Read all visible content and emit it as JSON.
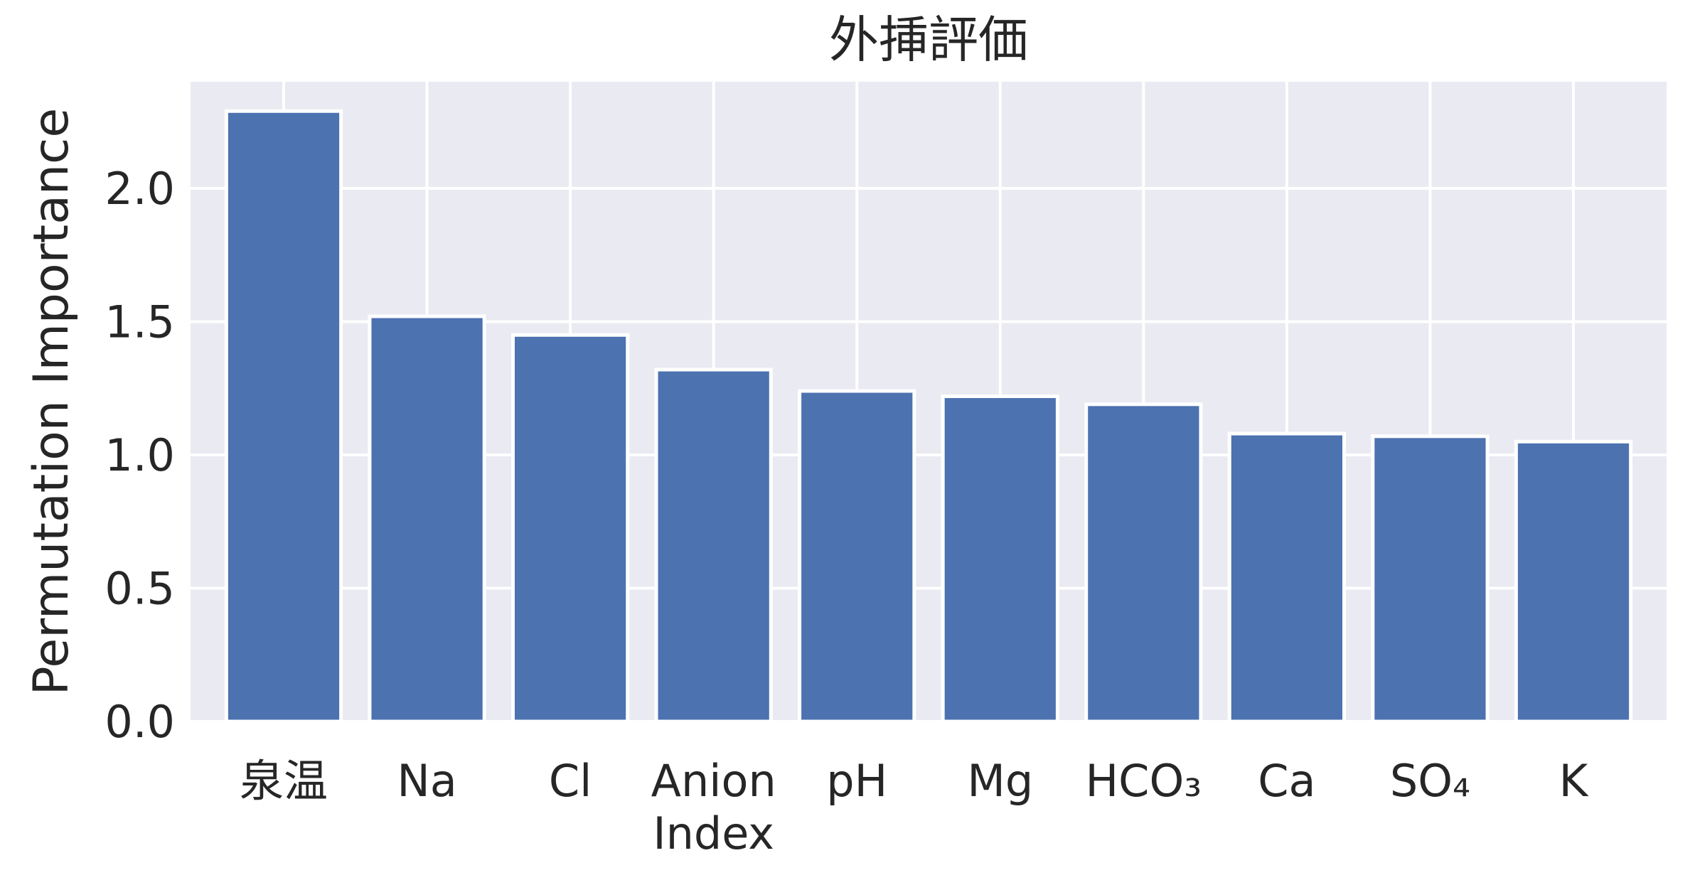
{
  "chart_data": {
    "type": "bar",
    "title": "外挿評価",
    "xlabel": "",
    "ylabel": "Permutation Importance",
    "categories": [
      [
        "泉温"
      ],
      [
        "Na"
      ],
      [
        "Cl"
      ],
      [
        "Anion",
        "Index"
      ],
      [
        "pH"
      ],
      [
        "Mg"
      ],
      [
        "HCO₃"
      ],
      [
        "Ca"
      ],
      [
        "SO₄"
      ],
      [
        "K"
      ]
    ],
    "values": [
      2.29,
      1.52,
      1.45,
      1.32,
      1.24,
      1.22,
      1.19,
      1.08,
      1.07,
      1.05
    ],
    "ylim": [
      0,
      2.4
    ],
    "yticks": [
      0.0,
      0.5,
      1.0,
      1.5,
      2.0
    ],
    "ytick_labels": [
      "0.0",
      "0.5",
      "1.0",
      "1.5",
      "2.0"
    ],
    "grid": true,
    "colors": {
      "bar": "#4c72b0",
      "bar_edge": "#ffffff",
      "plot_background": "#eaeaf2",
      "grid": "#ffffff",
      "text": "#262626"
    }
  }
}
